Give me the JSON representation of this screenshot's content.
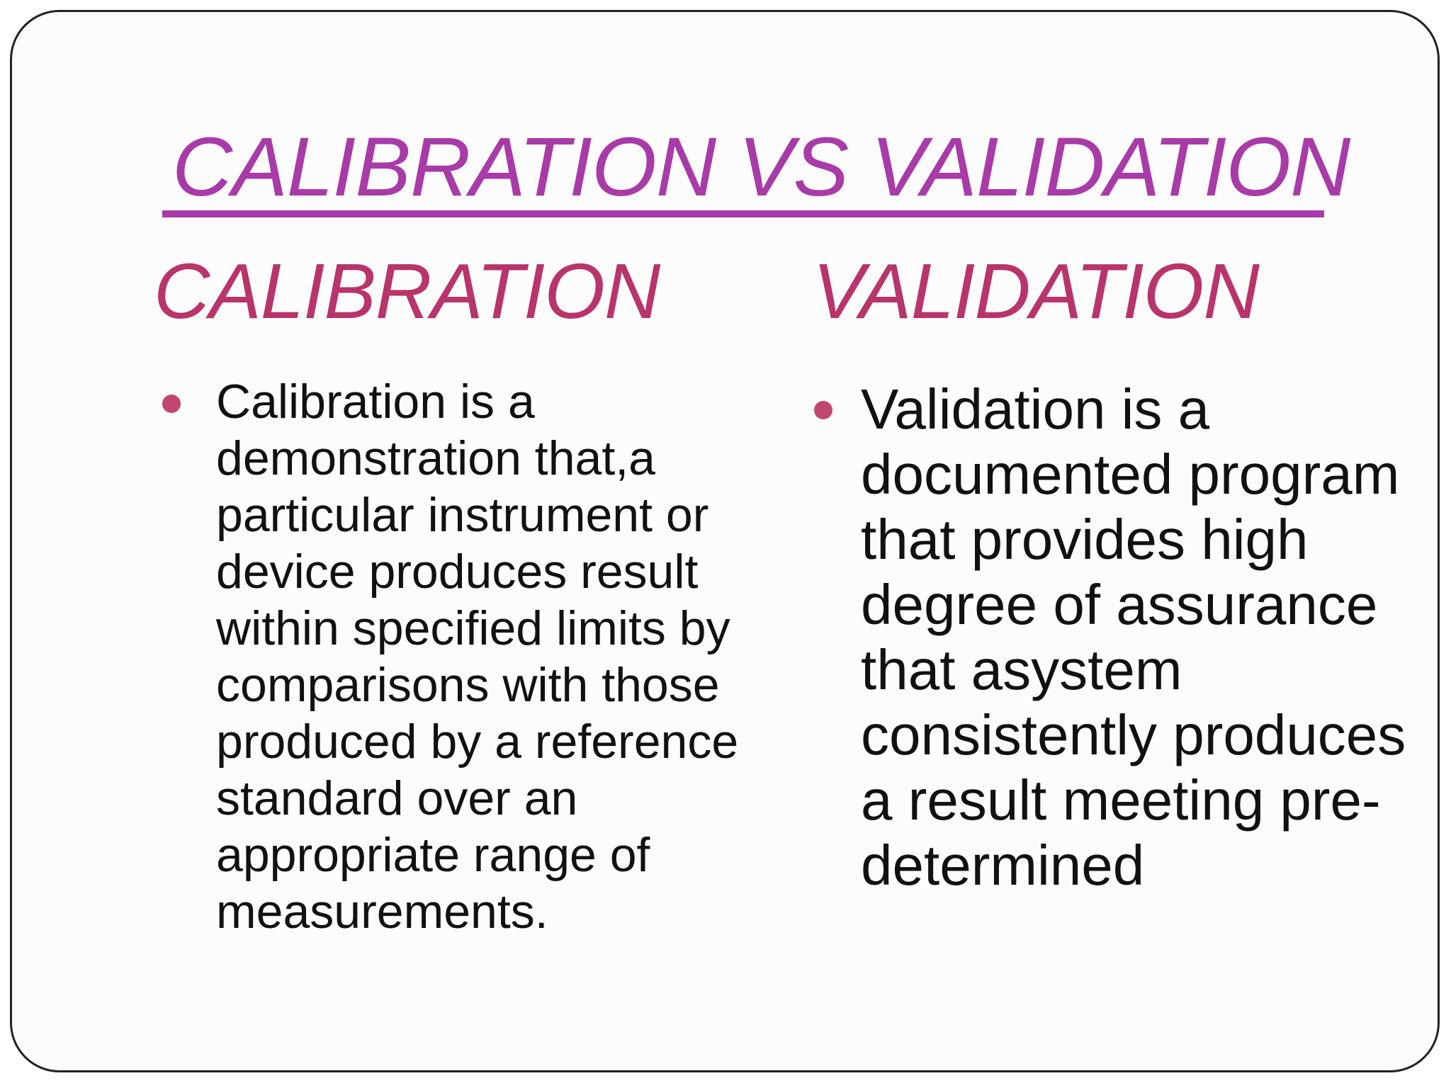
{
  "slide": {
    "title": "CALIBRATION VS VALIDATION",
    "left_column": {
      "heading": "CALIBRATION",
      "bullet": "Calibration is a demonstration that,a particular instrument or device produces result within specified limits by comparisons with those produced by a reference standard over an appropriate range of measurements."
    },
    "right_column": {
      "heading": "VALIDATION",
      "bullet": "Validation is a documented program that provides high degree of assurance that asystem consistently produces a result meeting pre-determined"
    },
    "colors": {
      "title": "#a83ba8",
      "heading": "#b8346b",
      "bullet_dot": "#c1476f",
      "text": "#111111"
    }
  }
}
